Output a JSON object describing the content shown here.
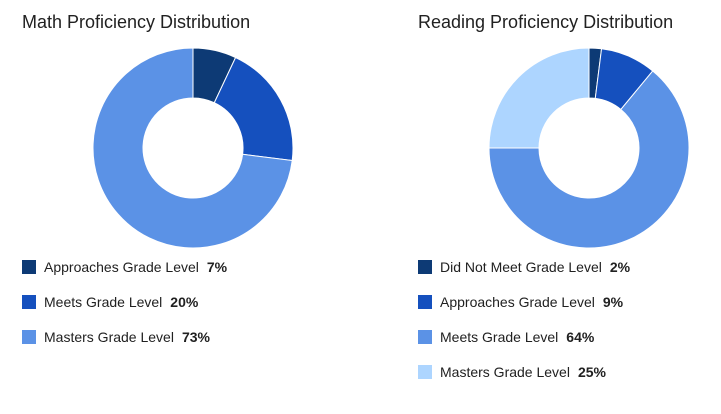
{
  "chart_data": [
    {
      "type": "pie",
      "title": "Math Proficiency Distribution",
      "categories": [
        "Approaches Grade Level",
        "Meets Grade Level",
        "Masters Grade Level"
      ],
      "values": [
        7,
        20,
        73
      ],
      "value_labels": [
        "7%",
        "20%",
        "73%"
      ],
      "colors": [
        "#0d3a75",
        "#1550be",
        "#5b92e6"
      ],
      "legend_placement": "bottom"
    },
    {
      "type": "pie",
      "title": "Reading Proficiency Distribution",
      "categories": [
        "Did Not Meet Grade Level",
        "Approaches Grade Level",
        "Meets Grade Level",
        "Masters Grade Level"
      ],
      "values": [
        2,
        9,
        64,
        25
      ],
      "value_labels": [
        "2%",
        "9%",
        "64%",
        "25%"
      ],
      "colors": [
        "#0d3a75",
        "#1550be",
        "#5b92e6",
        "#add5ff"
      ],
      "legend_placement": "bottom"
    }
  ]
}
